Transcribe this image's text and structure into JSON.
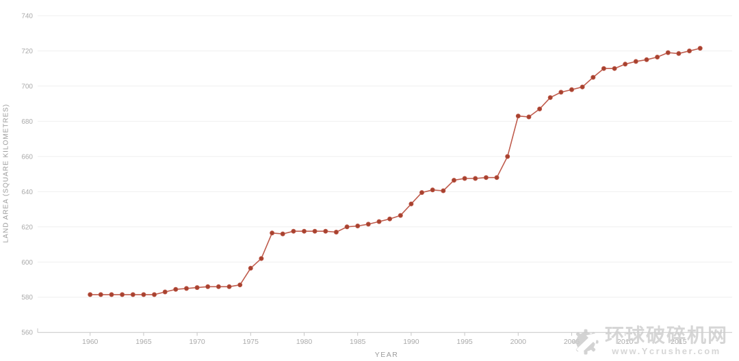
{
  "chart_data": {
    "type": "line",
    "title": "",
    "xlabel": "YEAR",
    "ylabel": "LAND AREA (SQUARE KILOMETRES)",
    "x": [
      1960,
      1961,
      1962,
      1963,
      1964,
      1965,
      1966,
      1967,
      1968,
      1969,
      1970,
      1971,
      1972,
      1973,
      1974,
      1975,
      1976,
      1977,
      1978,
      1979,
      1980,
      1981,
      1982,
      1983,
      1984,
      1985,
      1986,
      1987,
      1988,
      1989,
      1990,
      1991,
      1992,
      1993,
      1994,
      1995,
      1996,
      1997,
      1998,
      1999,
      2000,
      2001,
      2002,
      2003,
      2004,
      2005,
      2006,
      2007,
      2008,
      2009,
      2010,
      2011,
      2012,
      2013,
      2014,
      2015,
      2016,
      2017
    ],
    "series": [
      {
        "name": "Land area (square kilometres)",
        "values": [
          581.5,
          581.5,
          581.5,
          581.5,
          581.5,
          581.5,
          581.5,
          583,
          584.5,
          585,
          585.5,
          586,
          586,
          586,
          587,
          596.5,
          602,
          616.5,
          616,
          617.5,
          617.5,
          617.5,
          617.5,
          617,
          620,
          620.5,
          621.5,
          623,
          624.5,
          626.5,
          633,
          639.5,
          641,
          640.5,
          646.5,
          647.5,
          647.5,
          648,
          648,
          660,
          683,
          682.5,
          687,
          693.5,
          696.5,
          698,
          699.5,
          705,
          710,
          710,
          712.5,
          714,
          715,
          716.5,
          719,
          718.5,
          720,
          721.5
        ]
      }
    ],
    "ylim": [
      560,
      740
    ],
    "yticks": [
      560,
      580,
      600,
      620,
      640,
      660,
      680,
      700,
      720,
      740
    ],
    "xticks": [
      1960,
      1965,
      1970,
      1975,
      1980,
      1985,
      1990,
      1995,
      2000,
      2005,
      2010,
      2015
    ],
    "grid": true,
    "legend": false,
    "line_color": "#bf5b4c",
    "marker_color": "#a7422f",
    "grid_color": "#efefef",
    "axis_color": "#c6c6c6",
    "tick_label_color": "#aaaaaa"
  },
  "watermark": {
    "text_cn": "环球破碎机网",
    "url": "www.Ycrusher.com"
  }
}
